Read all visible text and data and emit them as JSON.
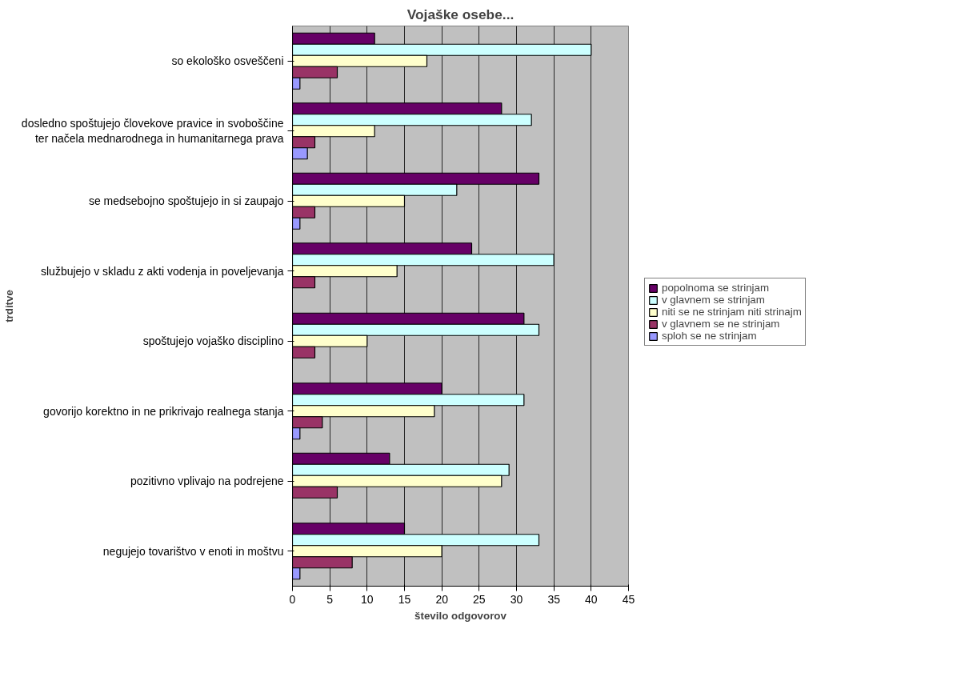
{
  "chart_data": {
    "type": "bar",
    "orientation": "horizontal",
    "title": "Vojaške osebe...",
    "xlabel": "število odgovorov",
    "ylabel": "trditve",
    "categories": [
      "so ekološko osveščeni",
      "dosledno spoštujejo človekove pravice in svoboščine ter načela mednarodnega in humanitarnega prava",
      "se medsebojno spoštujejo in si zaupajo",
      "službujejo v skladu z akti vodenja in poveljevanja",
      "spoštujejo vojaško disciplino",
      "govorijo korektno in ne prikrivajo realnega stanja",
      "pozitivno vplivajo na podrejene",
      "negujejo tovarištvo v enoti in moštvu"
    ],
    "series": [
      {
        "name": "popolnoma se strinjam",
        "color": "#660066",
        "values": [
          11,
          28,
          33,
          24,
          31,
          20,
          13,
          15
        ]
      },
      {
        "name": "v glavnem se strinjam",
        "color": "#ccffff",
        "values": [
          40,
          32,
          22,
          35,
          33,
          31,
          29,
          33
        ]
      },
      {
        "name": "niti se ne strinjam niti strinajm",
        "color": "#ffffcc",
        "values": [
          18,
          11,
          15,
          14,
          10,
          19,
          28,
          20
        ]
      },
      {
        "name": "v glavnem se ne strinjam",
        "color": "#993366",
        "values": [
          6,
          3,
          3,
          3,
          3,
          4,
          6,
          8
        ]
      },
      {
        "name": "sploh se ne strinjam",
        "color": "#9999ff",
        "values": [
          1,
          2,
          1,
          0,
          0,
          1,
          0,
          1
        ]
      }
    ],
    "xlim": [
      0,
      45
    ],
    "xticks": [
      0,
      5,
      10,
      15,
      20,
      25,
      30,
      35,
      40,
      45
    ],
    "grid": "x",
    "legend": "right"
  }
}
